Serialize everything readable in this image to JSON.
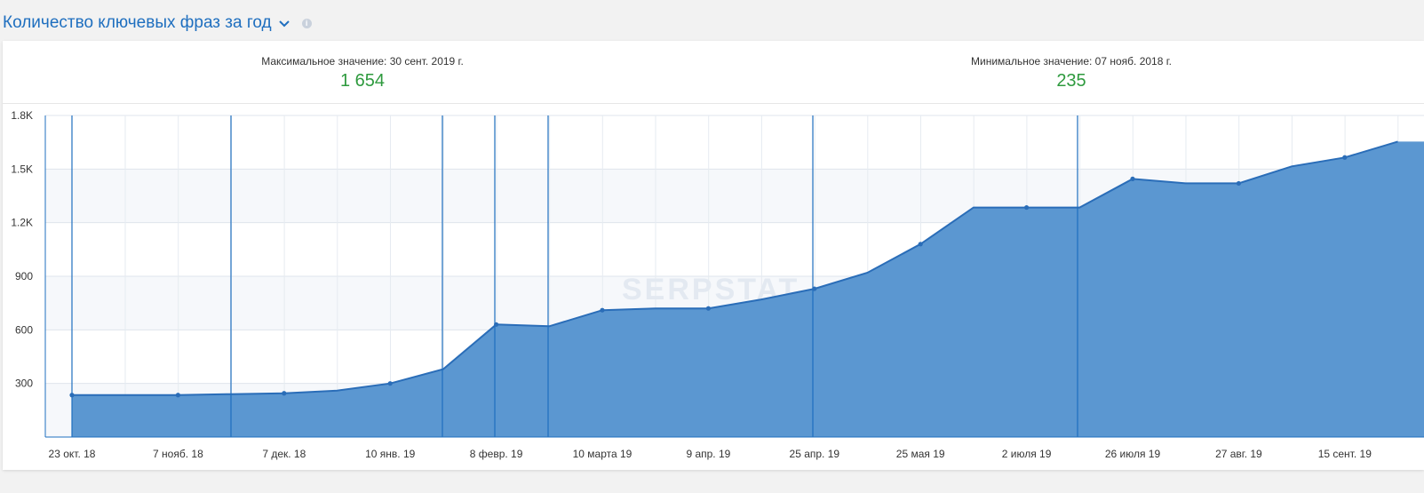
{
  "header": {
    "title": "Количество ключевых фраз за год",
    "info_glyph": "i",
    "icons": [
      "chevron-down-icon",
      "info-icon"
    ]
  },
  "stats": {
    "max_label": "Максимальное значение: 30 сент. 2019 г.",
    "max_value": "1 654",
    "min_label": "Минимальное значение: 07 нояб. 2018 г.",
    "min_value": "235"
  },
  "colors": {
    "accent": "#1f6fbf",
    "area_fill": "#5b97d1",
    "line": "#2a6db8",
    "value_green": "#2e9a3e"
  },
  "watermark": "SERPSTAT",
  "chart_data": {
    "type": "area",
    "title": "Количество ключевых фраз за год",
    "xlabel": "",
    "ylabel": "",
    "ylim": [
      0,
      1800
    ],
    "y_ticks": [
      300,
      600,
      900,
      1200,
      1500,
      1800
    ],
    "y_tick_labels": [
      "300",
      "600",
      "900",
      "1.2K",
      "1.5K",
      "1.8K"
    ],
    "x_tick_labels": [
      "23 окт. 18",
      "7 нояб. 18",
      "7 дек. 18",
      "10 янв. 19",
      "8 февр. 19",
      "10 марта 19",
      "9 апр. 19",
      "25 апр. 19",
      "25 мая 19",
      "2 июля 19",
      "26 июля 19",
      "27 авг. 19",
      "15 сент. 19"
    ],
    "grid": true,
    "series": [
      {
        "values": [
          235,
          235,
          235,
          240,
          245,
          260,
          300,
          380,
          630,
          620,
          710,
          720,
          720,
          770,
          830,
          920,
          1080,
          1285,
          1285,
          1285,
          1445,
          1420,
          1420,
          1515,
          1565,
          1654
        ]
      }
    ]
  }
}
